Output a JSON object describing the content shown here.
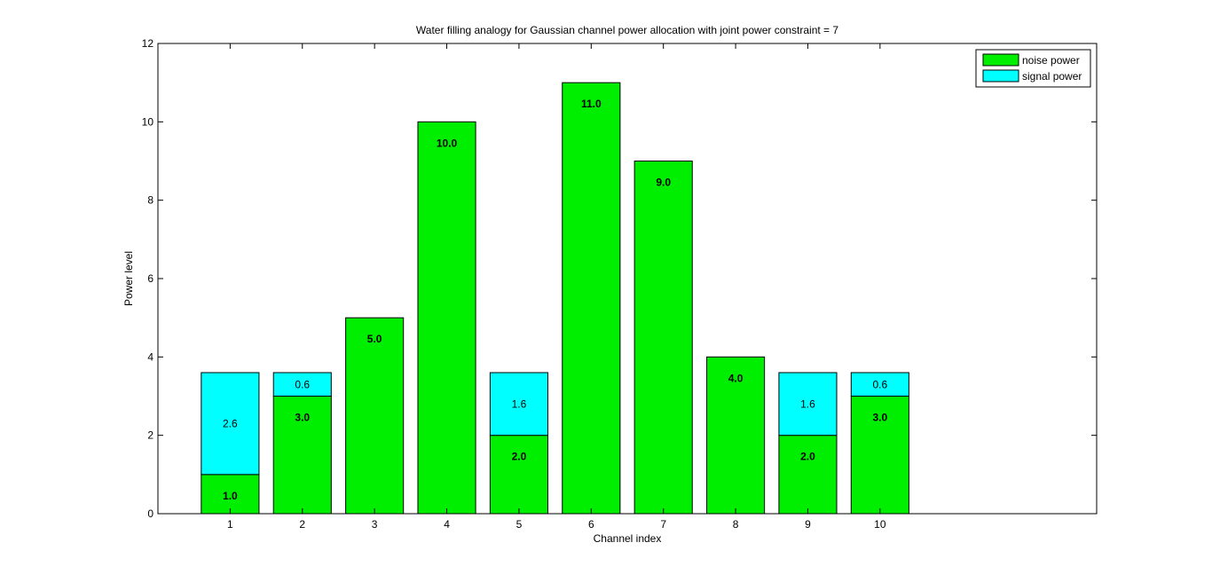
{
  "chart_data": {
    "type": "bar",
    "stacked": true,
    "title": "Water filling analogy for Gaussian channel power allocation with joint power constraint  = 7",
    "xlabel": "Channel index",
    "ylabel": "Power level",
    "categories": [
      "1",
      "2",
      "3",
      "4",
      "5",
      "6",
      "7",
      "8",
      "9",
      "10"
    ],
    "x": [
      1,
      2,
      3,
      4,
      5,
      6,
      7,
      8,
      9,
      10
    ],
    "xlim": [
      0,
      13
    ],
    "ylim": [
      0,
      12
    ],
    "yticks": [
      "0",
      "2",
      "4",
      "6",
      "8",
      "10",
      "12"
    ],
    "grid": false,
    "legend_position": "top-right",
    "series": [
      {
        "name": "noise power",
        "color": "#00ee00",
        "values": [
          1.0,
          3.0,
          5.0,
          10.0,
          2.0,
          11.0,
          9.0,
          4.0,
          2.0,
          3.0
        ],
        "labels": [
          "1.0",
          "3.0",
          "5.0",
          "10.0",
          "2.0",
          "11.0",
          "9.0",
          "4.0",
          "2.0",
          "3.0"
        ]
      },
      {
        "name": "signal power",
        "color": "#00ffff",
        "values": [
          2.6,
          0.6,
          0,
          0,
          1.6,
          0,
          0,
          0,
          1.6,
          0.6
        ],
        "labels": [
          "2.6",
          "0.6",
          "",
          "",
          "1.6",
          "",
          "",
          "",
          "1.6",
          "0.6"
        ]
      }
    ]
  }
}
